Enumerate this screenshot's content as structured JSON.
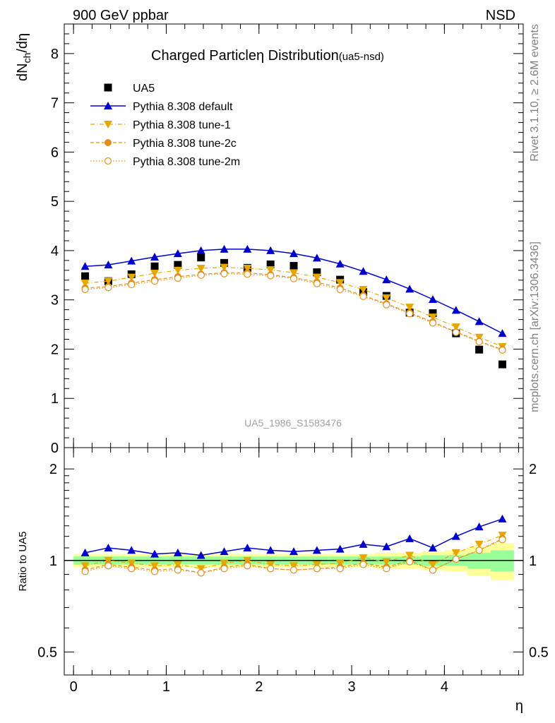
{
  "header": {
    "left": "900 GeV ppbar",
    "right": "NSD"
  },
  "side_labels": {
    "rivet": "Rivet 3.1.10, ≥ 2.6M events",
    "mcplots": "mcplots.cern.ch [arXiv:1306.3436]"
  },
  "chart_data": [
    {
      "type": "scatter",
      "panel": "main",
      "title_main": "Charged Particle",
      "title_symbol": "η",
      "title_rest": " Distribution",
      "title_tag": "(ua5-nsd)",
      "ylabel_main": "dN",
      "ylabel_sub": "ch",
      "ylabel_rest": "/dη",
      "ylim": [
        0,
        8.6
      ],
      "xlim": [
        -0.1,
        4.85
      ],
      "yticks": [
        "0",
        "1",
        "2",
        "3",
        "4",
        "5",
        "6",
        "7",
        "8"
      ],
      "xticks": [
        "0",
        "1",
        "2",
        "3",
        "4"
      ],
      "watermark": "UA5_1986_S1583476",
      "legend_position": "top-left",
      "x": [
        0.125,
        0.375,
        0.625,
        0.875,
        1.125,
        1.375,
        1.625,
        1.875,
        2.125,
        2.375,
        2.625,
        2.875,
        3.125,
        3.375,
        3.625,
        3.875,
        4.125,
        4.375,
        4.625
      ],
      "series": [
        {
          "name": "UA5",
          "color": "#000000",
          "marker": "square",
          "line": "none",
          "values": [
            3.48,
            3.38,
            3.52,
            3.68,
            3.71,
            3.86,
            3.75,
            3.65,
            3.72,
            3.69,
            3.56,
            3.41,
            3.16,
            3.08,
            2.74,
            2.73,
            2.32,
            1.99,
            1.69
          ]
        },
        {
          "name": "Pythia 8.308 default",
          "color": "#0000cc",
          "marker": "triangle-up",
          "line": "solid",
          "values": [
            3.68,
            3.71,
            3.79,
            3.87,
            3.94,
            4.0,
            4.03,
            4.03,
            4.0,
            3.94,
            3.85,
            3.73,
            3.58,
            3.41,
            3.22,
            3.01,
            2.79,
            2.56,
            2.32
          ]
        },
        {
          "name": "Pythia 8.308 tune-1",
          "color": "#e6a800",
          "marker": "triangle-down",
          "line": "dashdot",
          "values": [
            3.34,
            3.38,
            3.46,
            3.54,
            3.6,
            3.64,
            3.66,
            3.64,
            3.61,
            3.55,
            3.46,
            3.35,
            3.21,
            3.04,
            2.85,
            2.65,
            2.45,
            2.24,
            2.05
          ]
        },
        {
          "name": "Pythia 8.308 tune-2c",
          "color": "#e0901a",
          "marker": "circle",
          "line": "dashed",
          "values": [
            3.24,
            3.27,
            3.34,
            3.41,
            3.47,
            3.52,
            3.55,
            3.55,
            3.51,
            3.45,
            3.36,
            3.24,
            3.09,
            2.92,
            2.74,
            2.55,
            2.35,
            2.16,
            1.99
          ]
        },
        {
          "name": "Pythia 8.308 tune-2m",
          "color": "#e0901a",
          "marker": "open-circle",
          "line": "dotted",
          "values": [
            3.21,
            3.25,
            3.31,
            3.38,
            3.44,
            3.5,
            3.53,
            3.52,
            3.49,
            3.43,
            3.33,
            3.21,
            3.07,
            2.9,
            2.72,
            2.53,
            2.34,
            2.15,
            1.98
          ]
        }
      ]
    },
    {
      "type": "line",
      "panel": "ratio",
      "ylabel": "Ratio to UA5",
      "xlabel": "η",
      "ylim": [
        0.42,
        2.35
      ],
      "ylim_scale": "log",
      "yticks": [
        "0.5",
        "1",
        "2"
      ],
      "yticks_right": [
        "0.5",
        "1",
        "2"
      ],
      "x": [
        0.125,
        0.375,
        0.625,
        0.875,
        1.125,
        1.375,
        1.625,
        1.875,
        2.125,
        2.375,
        2.625,
        2.875,
        3.125,
        3.375,
        3.625,
        3.875,
        4.125,
        4.375,
        4.625
      ],
      "bands": {
        "inner_color": "#99ff99",
        "outer_color": "#ffff99",
        "x_edges": [
          0.0,
          0.25,
          0.5,
          0.75,
          1.0,
          1.25,
          1.5,
          1.75,
          2.0,
          2.25,
          2.5,
          2.75,
          3.0,
          3.25,
          3.5,
          3.75,
          4.0,
          4.25,
          4.5,
          4.75
        ],
        "inner_half_width": [
          0.03,
          0.03,
          0.03,
          0.03,
          0.03,
          0.03,
          0.03,
          0.03,
          0.03,
          0.03,
          0.03,
          0.03,
          0.03,
          0.03,
          0.03,
          0.04,
          0.04,
          0.06,
          0.08
        ],
        "outer_half_width": [
          0.05,
          0.05,
          0.05,
          0.05,
          0.05,
          0.05,
          0.05,
          0.05,
          0.05,
          0.05,
          0.05,
          0.05,
          0.05,
          0.06,
          0.06,
          0.07,
          0.08,
          0.11,
          0.14
        ]
      },
      "series": [
        {
          "name": "Pythia 8.308 default",
          "color": "#0000cc",
          "marker": "triangle-up",
          "line": "solid",
          "values": [
            1.06,
            1.1,
            1.08,
            1.05,
            1.06,
            1.04,
            1.07,
            1.1,
            1.08,
            1.07,
            1.08,
            1.09,
            1.13,
            1.11,
            1.18,
            1.1,
            1.2,
            1.29,
            1.37
          ]
        },
        {
          "name": "Pythia 8.308 tune-1",
          "color": "#e6a800",
          "marker": "triangle-down",
          "line": "dashdot",
          "values": [
            0.96,
            1.0,
            0.98,
            0.96,
            0.97,
            0.94,
            0.98,
            1.0,
            0.97,
            0.96,
            0.97,
            0.98,
            1.02,
            0.99,
            1.04,
            0.97,
            1.06,
            1.13,
            1.21
          ]
        },
        {
          "name": "Pythia 8.308 tune-2c",
          "color": "#e0901a",
          "marker": "circle",
          "line": "dashed",
          "values": [
            0.93,
            0.97,
            0.95,
            0.93,
            0.94,
            0.91,
            0.95,
            0.97,
            0.94,
            0.93,
            0.94,
            0.95,
            0.98,
            0.95,
            1.0,
            0.93,
            1.01,
            1.08,
            1.18
          ]
        },
        {
          "name": "Pythia 8.308 tune-2m",
          "color": "#e0901a",
          "marker": "open-circle",
          "line": "dotted",
          "values": [
            0.92,
            0.96,
            0.94,
            0.92,
            0.93,
            0.91,
            0.94,
            0.96,
            0.94,
            0.93,
            0.94,
            0.94,
            0.97,
            0.94,
            0.99,
            0.93,
            1.01,
            1.08,
            1.17
          ]
        }
      ]
    }
  ]
}
